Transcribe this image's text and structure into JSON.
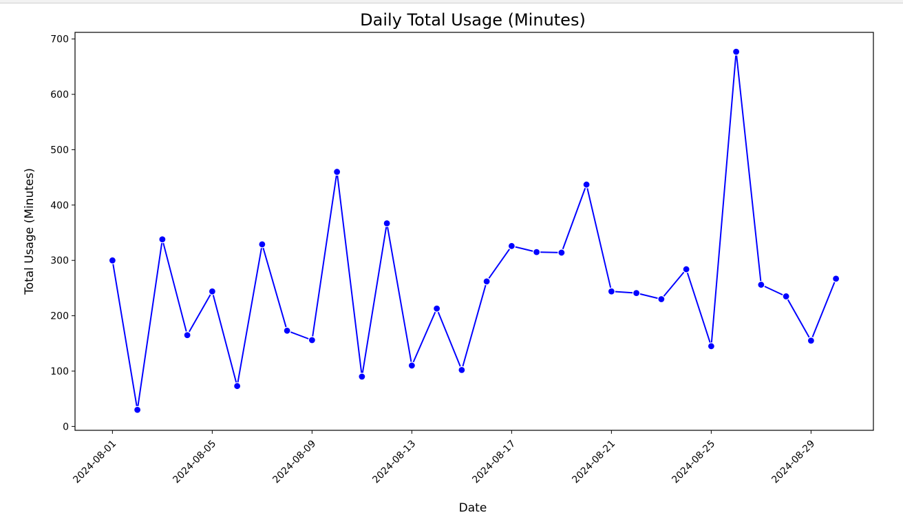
{
  "chart_data": {
    "type": "line",
    "title": "Daily Total Usage (Minutes)",
    "xlabel": "Date",
    "ylabel": "Total Usage (Minutes)",
    "ylim": [
      -7,
      712
    ],
    "xlim": [
      "2024-07-30T12:00",
      "2024-08-31T12:00"
    ],
    "yticks": [
      0,
      100,
      200,
      300,
      400,
      500,
      600,
      700
    ],
    "xticks": [
      "2024-08-01",
      "2024-08-05",
      "2024-08-09",
      "2024-08-13",
      "2024-08-17",
      "2024-08-21",
      "2024-08-25",
      "2024-08-29"
    ],
    "grid": false,
    "line_color": "#0000ff",
    "marker": "circle",
    "series": [
      {
        "x": [
          "2024-08-01",
          "2024-08-02",
          "2024-08-03",
          "2024-08-04",
          "2024-08-05",
          "2024-08-06",
          "2024-08-07",
          "2024-08-08",
          "2024-08-09",
          "2024-08-10",
          "2024-08-11",
          "2024-08-12",
          "2024-08-13",
          "2024-08-14",
          "2024-08-15",
          "2024-08-16",
          "2024-08-17",
          "2024-08-18",
          "2024-08-19",
          "2024-08-20",
          "2024-08-21",
          "2024-08-22",
          "2024-08-23",
          "2024-08-24",
          "2024-08-25",
          "2024-08-26",
          "2024-08-27",
          "2024-08-28",
          "2024-08-29",
          "2024-08-30"
        ],
        "values": [
          300,
          30,
          338,
          165,
          244,
          73,
          329,
          173,
          156,
          460,
          90,
          367,
          110,
          213,
          102,
          262,
          326,
          315,
          314,
          437,
          244,
          241,
          230,
          284,
          145,
          677,
          256,
          235,
          155,
          267
        ]
      }
    ]
  }
}
